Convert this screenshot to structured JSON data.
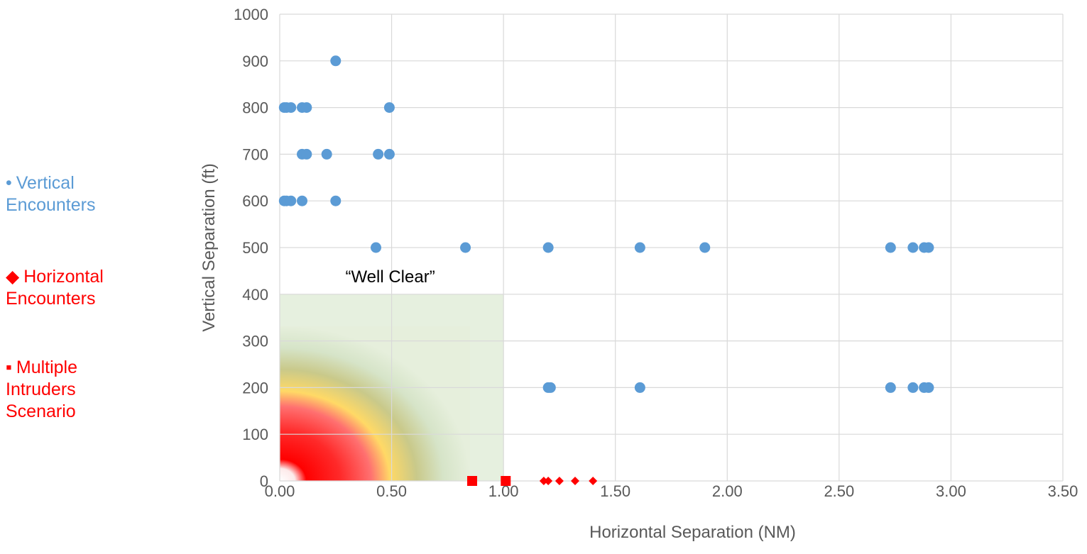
{
  "chart_data": {
    "type": "scatter",
    "xlabel": "Horizontal Separation (NM)",
    "ylabel": "Vertical Separation (ft)",
    "xlim": [
      0,
      3.5
    ],
    "ylim": [
      0,
      1000
    ],
    "x_ticks": [
      "0.00",
      "0.50",
      "1.00",
      "1.50",
      "2.00",
      "2.50",
      "3.00",
      "3.50"
    ],
    "y_ticks": [
      "0",
      "100",
      "200",
      "300",
      "400",
      "500",
      "600",
      "700",
      "800",
      "900",
      "1000"
    ],
    "grid": true,
    "legend_position": "left",
    "annotation": {
      "text": "“Well Clear”",
      "x": 0.5,
      "y": 430
    },
    "well_clear_region": {
      "x_max": 1.0,
      "y_max": 400
    },
    "series": [
      {
        "name": "Vertical Encounters",
        "legend_lines": [
          "Vertical",
          "Encounters"
        ],
        "color": "#5b9bd5",
        "marker": "circle",
        "legend_symbol": "•",
        "points": [
          [
            0.25,
            900
          ],
          [
            0.02,
            800
          ],
          [
            0.03,
            800
          ],
          [
            0.05,
            800
          ],
          [
            0.1,
            800
          ],
          [
            0.12,
            800
          ],
          [
            0.49,
            800
          ],
          [
            0.1,
            700
          ],
          [
            0.12,
            700
          ],
          [
            0.21,
            700
          ],
          [
            0.44,
            700
          ],
          [
            0.49,
            700
          ],
          [
            0.02,
            600
          ],
          [
            0.03,
            600
          ],
          [
            0.05,
            600
          ],
          [
            0.1,
            600
          ],
          [
            0.25,
            600
          ],
          [
            0.43,
            500
          ],
          [
            0.83,
            500
          ],
          [
            1.2,
            500
          ],
          [
            1.61,
            500
          ],
          [
            1.9,
            500
          ],
          [
            2.73,
            500
          ],
          [
            2.83,
            500
          ],
          [
            2.88,
            500
          ],
          [
            2.9,
            500
          ],
          [
            1.2,
            200
          ],
          [
            1.21,
            200
          ],
          [
            1.61,
            200
          ],
          [
            2.73,
            200
          ],
          [
            2.83,
            200
          ],
          [
            2.88,
            200
          ],
          [
            2.9,
            200
          ]
        ]
      },
      {
        "name": "Horizontal Encounters",
        "legend_lines": [
          "Horizontal",
          "Encounters"
        ],
        "color": "#ff0000",
        "marker": "diamond",
        "legend_symbol": "◆",
        "points": [
          [
            1.18,
            0
          ],
          [
            1.2,
            0
          ],
          [
            1.25,
            0
          ],
          [
            1.32,
            0
          ],
          [
            1.4,
            0
          ]
        ]
      },
      {
        "name": "Multiple Intruders Scenario",
        "legend_lines": [
          "Multiple",
          "Intruders",
          "Scenario"
        ],
        "color": "#ff0000",
        "marker": "square",
        "legend_symbol": "▪",
        "points": [
          [
            0.86,
            0
          ],
          [
            1.01,
            0
          ]
        ]
      }
    ]
  }
}
